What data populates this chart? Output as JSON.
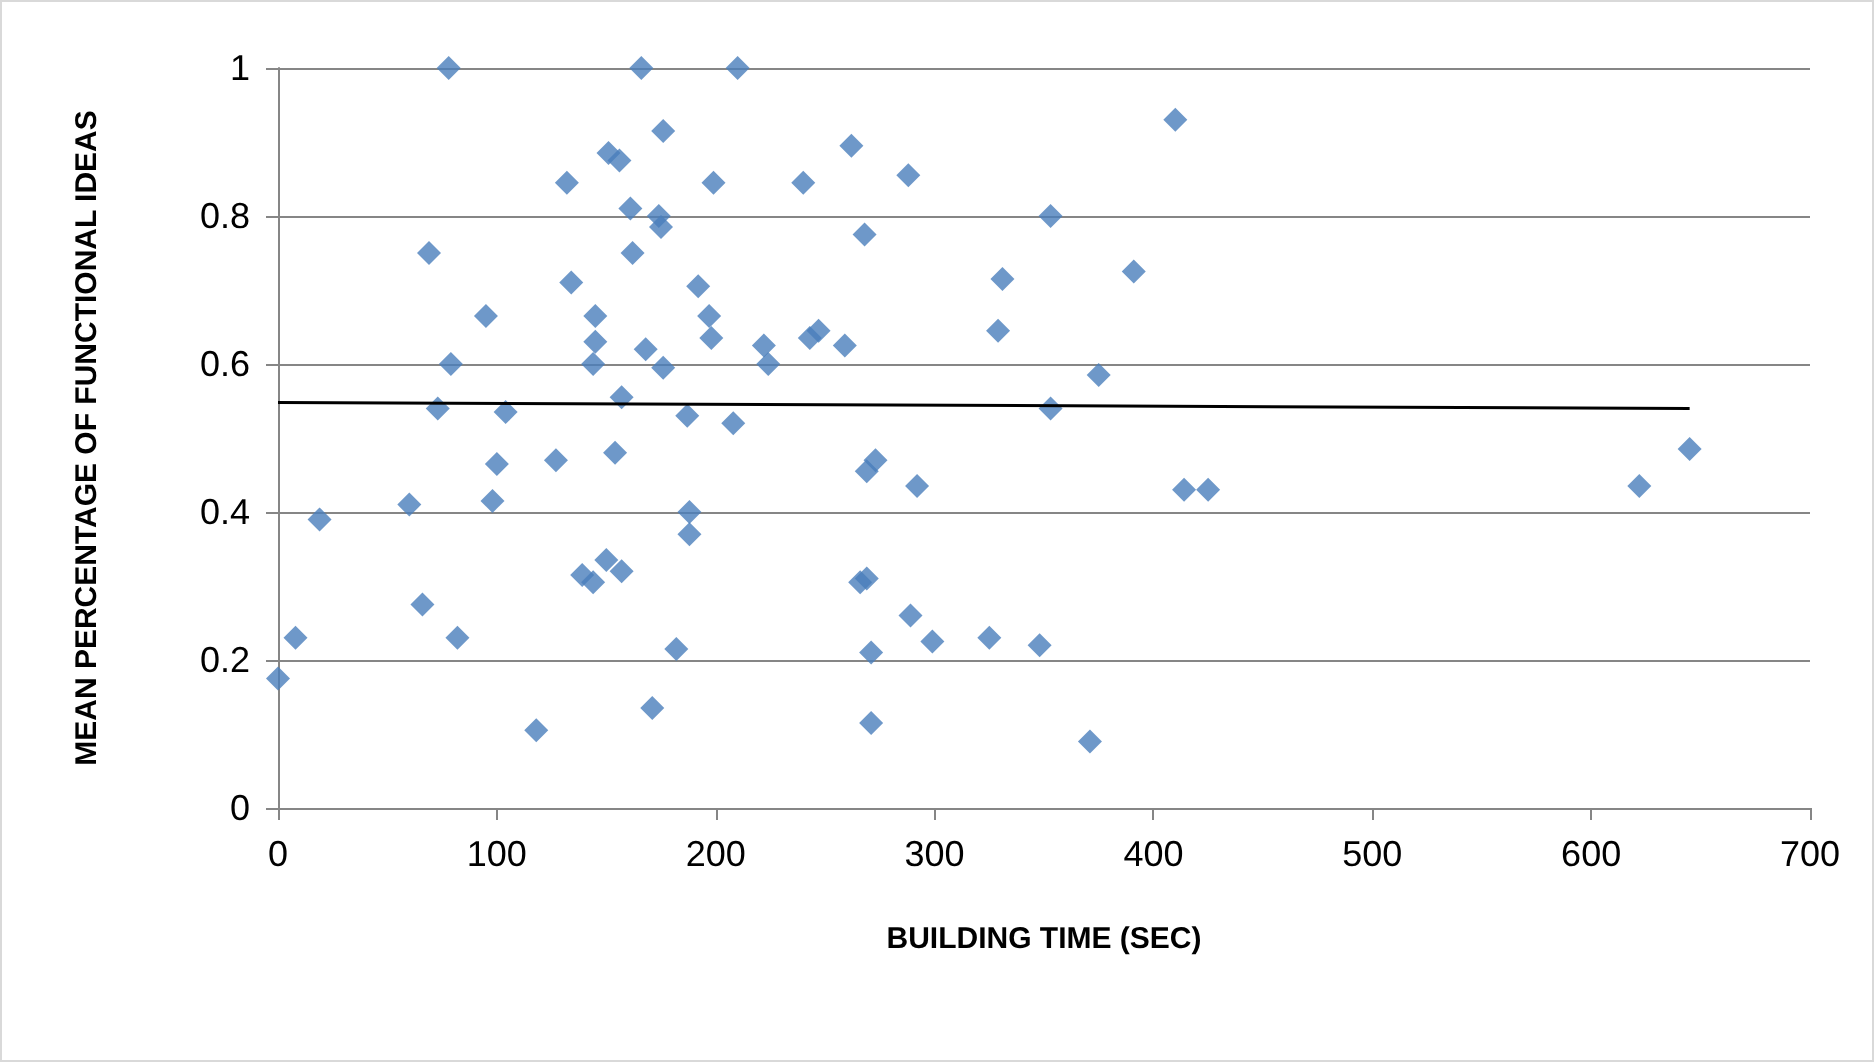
{
  "chart_data": {
    "type": "scatter",
    "xlabel": "BUILDING TIME (SEC)",
    "ylabel": "MEAN PERCENTAGE OF FUNCTIONAL IDEAS",
    "xlim": [
      0,
      700
    ],
    "xticks": [
      0,
      100,
      200,
      300,
      400,
      500,
      600,
      700
    ],
    "ylim": [
      0,
      1
    ],
    "yticks": [
      0,
      0.2,
      0.4,
      0.6,
      0.8,
      1
    ],
    "grid": "y",
    "marker": "diamond",
    "series": [
      {
        "color": "#4a7ebb",
        "x": [
          0,
          8,
          19,
          60,
          66,
          69,
          73,
          78,
          79,
          82,
          95,
          98,
          100,
          104,
          118,
          127,
          132,
          134,
          139,
          144,
          144,
          145,
          145,
          150,
          151,
          154,
          156,
          157,
          157,
          161,
          162,
          166,
          168,
          171,
          174,
          175,
          176,
          176,
          182,
          187,
          188,
          188,
          192,
          197,
          198,
          199,
          208,
          210,
          222,
          224,
          240,
          243,
          247,
          259,
          262,
          266,
          268,
          269,
          269,
          271,
          271,
          273,
          288,
          289,
          292,
          299,
          325,
          329,
          331,
          348,
          353,
          353,
          371,
          375,
          391,
          410,
          414,
          425,
          622,
          645
        ],
        "values": [
          0.175,
          0.23,
          0.39,
          0.41,
          0.275,
          0.75,
          0.54,
          1.0,
          0.6,
          0.23,
          0.665,
          0.415,
          0.465,
          0.535,
          0.105,
          0.47,
          0.845,
          0.71,
          0.315,
          0.6,
          0.305,
          0.63,
          0.665,
          0.335,
          0.885,
          0.48,
          0.875,
          0.555,
          0.32,
          0.81,
          0.75,
          1.0,
          0.62,
          0.135,
          0.8,
          0.785,
          0.915,
          0.595,
          0.215,
          0.53,
          0.4,
          0.37,
          0.705,
          0.665,
          0.635,
          0.845,
          0.52,
          1.0,
          0.625,
          0.6,
          0.845,
          0.635,
          0.645,
          0.625,
          0.895,
          0.305,
          0.775,
          0.455,
          0.31,
          0.21,
          0.115,
          0.47,
          0.855,
          0.26,
          0.435,
          0.225,
          0.23,
          0.645,
          0.715,
          0.22,
          0.8,
          0.54,
          0.09,
          0.585,
          0.725,
          0.93,
          0.43,
          0.43,
          0.435,
          0.485
        ]
      },
      {
        "type": "line",
        "color": "#000000",
        "marker": "none",
        "x": [
          0,
          645
        ],
        "values": [
          0.548,
          0.54
        ]
      }
    ]
  }
}
